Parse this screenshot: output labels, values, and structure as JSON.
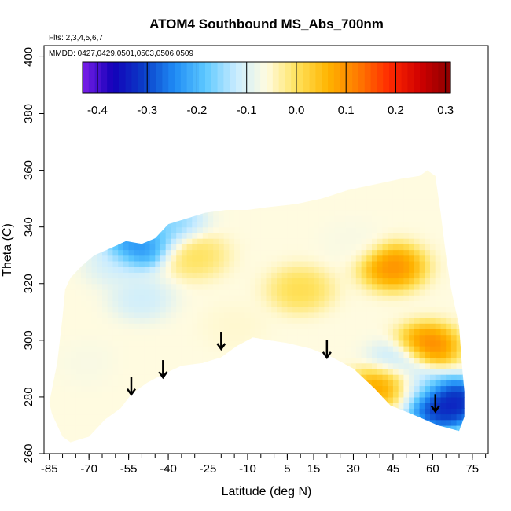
{
  "chart_data": {
    "type": "heatmap",
    "title": "ATOM4 Southbound MS_Abs_700nm",
    "annotations": [
      "Flts: 2,3,4,5,6,7",
      "MMDD: 0427,0429,0501,0503,0506,0509"
    ],
    "xlabel": "Latitude (deg N)",
    "ylabel": "Theta (C)",
    "xlim": [
      -87,
      81
    ],
    "ylim": [
      260,
      404
    ],
    "x_ticks": [
      -85,
      -70,
      -55,
      -40,
      -25,
      -10,
      5,
      15,
      30,
      45,
      60,
      75
    ],
    "x_tick_labels": [
      "-85",
      "-70",
      "-55",
      "-40",
      "-25",
      "-10",
      "5",
      "15",
      "30",
      "45",
      "60",
      "75"
    ],
    "y_ticks": [
      260,
      280,
      300,
      320,
      340,
      360,
      380,
      400
    ],
    "y_tick_labels": [
      "260",
      "280",
      "300",
      "320",
      "340",
      "360",
      "380",
      "400"
    ],
    "colorbar": {
      "range": [
        -0.43,
        0.31
      ],
      "ticks": [
        -0.4,
        -0.3,
        -0.2,
        -0.1,
        0.0,
        0.1,
        0.2,
        0.3
      ],
      "tick_labels": [
        "-0.4",
        "-0.3",
        "-0.2",
        "-0.1",
        "0.0",
        "0.1",
        "0.2",
        "0.3"
      ],
      "colors": [
        "#7a1fe8",
        "#1300b8",
        "#0a3ec8",
        "#1f8cf5",
        "#5cc8ff",
        "#c9ecff",
        "#fffbe0",
        "#ffe25c",
        "#ffb400",
        "#ff7a00",
        "#ff2a00",
        "#d00000",
        "#8a0000"
      ]
    },
    "boundary": [
      [
        -85,
        278
      ],
      [
        -82,
        292
      ],
      [
        -80,
        308
      ],
      [
        -79,
        318
      ],
      [
        -77,
        322
      ],
      [
        -73,
        326
      ],
      [
        -68,
        330
      ],
      [
        -63,
        332
      ],
      [
        -56,
        335
      ],
      [
        -50,
        334
      ],
      [
        -45,
        336
      ],
      [
        -40,
        341
      ],
      [
        -33,
        343
      ],
      [
        -26,
        345
      ],
      [
        -18,
        346
      ],
      [
        -10,
        346
      ],
      [
        -2,
        347
      ],
      [
        8,
        348
      ],
      [
        18,
        350
      ],
      [
        28,
        353
      ],
      [
        38,
        355
      ],
      [
        48,
        357
      ],
      [
        55,
        358
      ],
      [
        58,
        360
      ],
      [
        61,
        358
      ],
      [
        63,
        345
      ],
      [
        65,
        330
      ],
      [
        67,
        318
      ],
      [
        70,
        305
      ],
      [
        71,
        292
      ],
      [
        72,
        282
      ],
      [
        72,
        273
      ],
      [
        70,
        268
      ],
      [
        62,
        270
      ],
      [
        52,
        274
      ],
      [
        44,
        277
      ],
      [
        38,
        283
      ],
      [
        30,
        290
      ],
      [
        22,
        294
      ],
      [
        14,
        297
      ],
      [
        5,
        299
      ],
      [
        -2,
        300
      ],
      [
        -8,
        301
      ],
      [
        -14,
        298
      ],
      [
        -20,
        294
      ],
      [
        -27,
        292
      ],
      [
        -35,
        291
      ],
      [
        -42,
        288
      ],
      [
        -48,
        285
      ],
      [
        -54,
        281
      ],
      [
        -58,
        276
      ],
      [
        -64,
        272
      ],
      [
        -70,
        266
      ],
      [
        -77,
        264
      ],
      [
        -80,
        266
      ],
      [
        -84,
        274
      ]
    ],
    "anomalies": [
      {
        "lat": -52,
        "theta": 333,
        "value": -0.32
      },
      {
        "lat": -47,
        "theta": 337,
        "value": -0.2
      },
      {
        "lat": -38,
        "theta": 342,
        "value": -0.18
      },
      {
        "lat": -60,
        "theta": 327,
        "value": -0.12
      },
      {
        "lat": -50,
        "theta": 315,
        "value": -0.13
      },
      {
        "lat": -70,
        "theta": 292,
        "value": -0.07
      },
      {
        "lat": -52,
        "theta": 290,
        "value": -0.06
      },
      {
        "lat": -30,
        "theta": 330,
        "value": 0.02
      },
      {
        "lat": 10,
        "theta": 318,
        "value": 0.03
      },
      {
        "lat": 45,
        "theta": 326,
        "value": 0.15
      },
      {
        "lat": 58,
        "theta": 298,
        "value": 0.17
      },
      {
        "lat": 47,
        "theta": 292,
        "value": -0.18
      },
      {
        "lat": 43,
        "theta": 285,
        "value": 0.16
      },
      {
        "lat": 55,
        "theta": 284,
        "value": -0.17
      },
      {
        "lat": 63,
        "theta": 276,
        "value": -0.38
      },
      {
        "lat": 68,
        "theta": 279,
        "value": -0.4
      },
      {
        "lat": 30,
        "theta": 335,
        "value": -0.07
      },
      {
        "lat": -15,
        "theta": 305,
        "value": -0.05
      }
    ],
    "arrows": [
      {
        "lat": -54,
        "theta": 287
      },
      {
        "lat": -42,
        "theta": 293
      },
      {
        "lat": -20,
        "theta": 303
      },
      {
        "lat": 20,
        "theta": 300
      },
      {
        "lat": 61,
        "theta": 281
      }
    ]
  }
}
